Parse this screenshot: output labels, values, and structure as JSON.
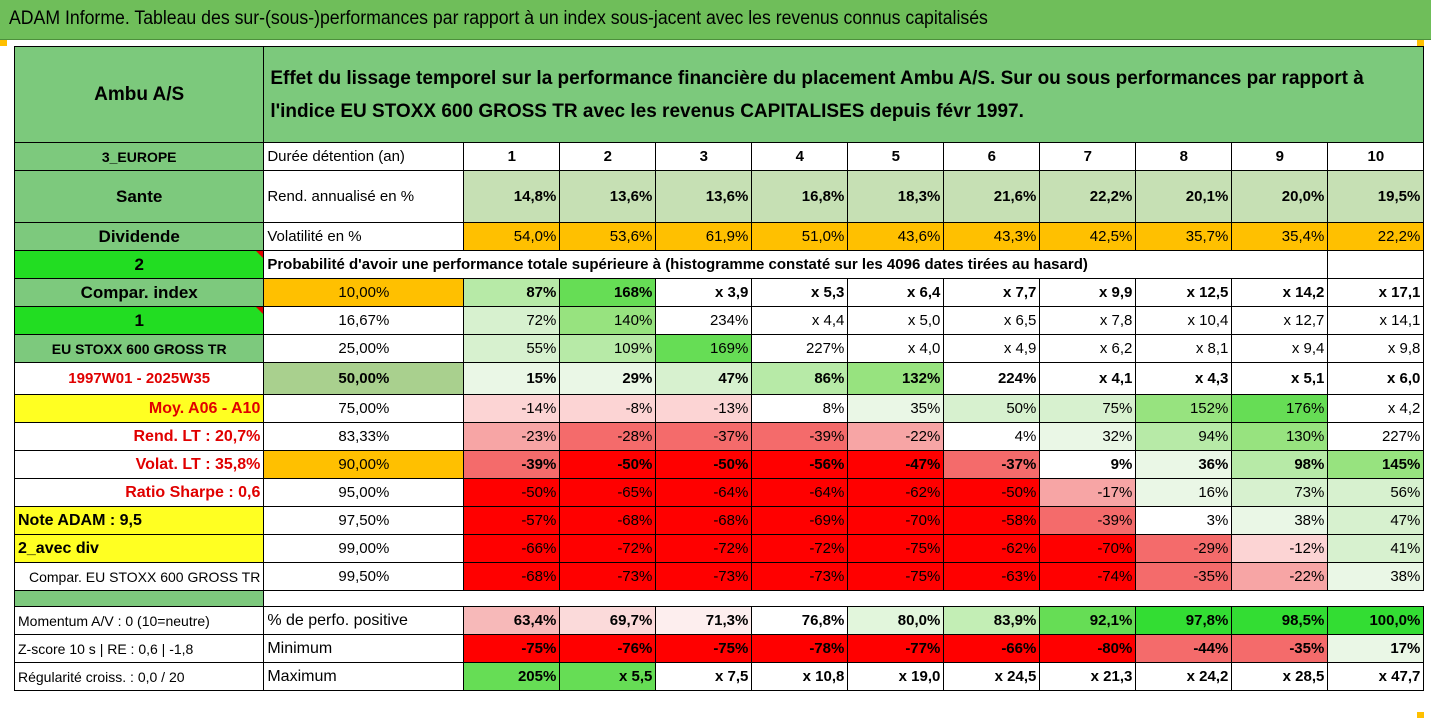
{
  "title": "ADAM Informe. Tableau des sur-(sous-)performances par rapport à un index sous-jacent avec les revenus connus capitalisés",
  "colors": {
    "bar_green": "#6fbe5a",
    "label_green": "#7dc97d",
    "bright_green": "#22dd22",
    "orange": "#ffc000",
    "yellow": "#ffff22",
    "dark_red": "#e00000"
  },
  "asset": "Ambu A/S",
  "headline": "Effet du lissage temporel sur la performance financière du placement Ambu A/S. Sur ou sous performances par rapport à l'indice EU STOXX 600 GROSS TR avec les revenus CAPITALISES depuis févr 1997.",
  "labels": {
    "region": "3_EUROPE",
    "sector": "Sante",
    "dividend": "Dividende",
    "code2": "2",
    "compar_index": "Compar. index",
    "code1": "1",
    "index_name": "EU STOXX 600 GROSS TR",
    "period": "1997W01 - 2025W35",
    "moy": "Moy. A06 - A10",
    "rend_lt": "Rend. LT :   20,7%",
    "volat_lt": "Volat. LT :   35,8%",
    "sharpe": "Ratio Sharpe :    0,6",
    "note": "Note ADAM : 9,5",
    "avec_div": "2_avec div",
    "compar_full": "Compar. EU STOXX 600 GROSS TR",
    "momentum": "Momentum A/V : 0 (10=neutre)",
    "zscore": "Z-score 10 s  | RE : 0,6 | -1,8",
    "regularite": "Régularité croiss. : 0,0 / 20"
  },
  "row_labels": {
    "duree": "Durée détention (an)",
    "rend": "Rend. annualisé en %",
    "vol": "Volatilité en %",
    "proba": "Probabilité d'avoir une performance totale supérieure à (histogramme constaté sur les 4096 dates tirées au hasard)",
    "pct_pos": "% de perfo. positive",
    "minimum": "Minimum",
    "maximum": "Maximum"
  },
  "years": [
    "1",
    "2",
    "3",
    "4",
    "5",
    "6",
    "7",
    "8",
    "9",
    "10"
  ],
  "rend": [
    "14,8%",
    "13,6%",
    "13,6%",
    "16,8%",
    "18,3%",
    "21,6%",
    "22,2%",
    "20,1%",
    "20,0%",
    "19,5%"
  ],
  "vol": [
    "54,0%",
    "53,6%",
    "61,9%",
    "51,0%",
    "43,6%",
    "43,3%",
    "42,5%",
    "35,7%",
    "35,4%",
    "22,2%"
  ],
  "quantiles": [
    {
      "q": "10,00%",
      "cells": [
        "87%",
        "168%",
        "x 3,9",
        "x 5,3",
        "x 6,4",
        "x 7,7",
        "x 9,9",
        "x 12,5",
        "x 14,2",
        "x 17,1"
      ]
    },
    {
      "q": "16,67%",
      "cells": [
        "72%",
        "140%",
        "234%",
        "x 4,4",
        "x 5,0",
        "x 6,5",
        "x 7,8",
        "x 10,4",
        "x 12,7",
        "x 14,1"
      ]
    },
    {
      "q": "25,00%",
      "cells": [
        "55%",
        "109%",
        "169%",
        "227%",
        "x 4,0",
        "x 4,9",
        "x 6,2",
        "x 8,1",
        "x 9,4",
        "x 9,8"
      ]
    },
    {
      "q": "50,00%",
      "cells": [
        "15%",
        "29%",
        "47%",
        "86%",
        "132%",
        "224%",
        "x 4,1",
        "x 4,3",
        "x 5,1",
        "x 6,0"
      ]
    },
    {
      "q": "75,00%",
      "cells": [
        "-14%",
        "-8%",
        "-13%",
        "8%",
        "35%",
        "50%",
        "75%",
        "152%",
        "176%",
        "x 4,2"
      ]
    },
    {
      "q": "83,33%",
      "cells": [
        "-23%",
        "-28%",
        "-37%",
        "-39%",
        "-22%",
        "4%",
        "32%",
        "94%",
        "130%",
        "227%"
      ]
    },
    {
      "q": "90,00%",
      "cells": [
        "-39%",
        "-50%",
        "-50%",
        "-56%",
        "-47%",
        "-37%",
        "9%",
        "36%",
        "98%",
        "145%"
      ]
    },
    {
      "q": "95,00%",
      "cells": [
        "-50%",
        "-65%",
        "-64%",
        "-64%",
        "-62%",
        "-50%",
        "-17%",
        "16%",
        "73%",
        "56%"
      ]
    },
    {
      "q": "97,50%",
      "cells": [
        "-57%",
        "-68%",
        "-68%",
        "-69%",
        "-70%",
        "-58%",
        "-39%",
        "3%",
        "38%",
        "47%"
      ]
    },
    {
      "q": "99,00%",
      "cells": [
        "-66%",
        "-72%",
        "-72%",
        "-72%",
        "-75%",
        "-62%",
        "-70%",
        "-29%",
        "-12%",
        "41%"
      ]
    },
    {
      "q": "99,50%",
      "cells": [
        "-68%",
        "-73%",
        "-73%",
        "-73%",
        "-75%",
        "-63%",
        "-74%",
        "-35%",
        "-22%",
        "38%"
      ]
    }
  ],
  "pct_pos": [
    "63,4%",
    "69,7%",
    "71,3%",
    "76,8%",
    "80,0%",
    "83,9%",
    "92,1%",
    "97,8%",
    "98,5%",
    "100,0%"
  ],
  "minimum": [
    "-75%",
    "-76%",
    "-75%",
    "-78%",
    "-77%",
    "-66%",
    "-80%",
    "-44%",
    "-35%",
    "17%"
  ],
  "maximum": [
    "205%",
    "x 5,5",
    "x 7,5",
    "x 10,8",
    "x 19,0",
    "x 24,5",
    "x 21,3",
    "x 24,2",
    "x 28,5",
    "x 47,7"
  ]
}
